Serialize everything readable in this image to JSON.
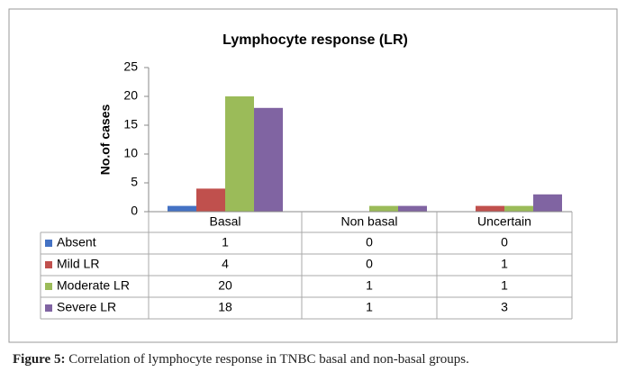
{
  "chart_data": {
    "type": "bar",
    "title": "Lymphocyte response (LR)",
    "y_label": "No.of cases",
    "categories": [
      "Basal",
      "Non basal",
      "Uncertain"
    ],
    "series": [
      {
        "name": "Absent",
        "color": "#4472c4",
        "values": [
          1,
          0,
          0
        ]
      },
      {
        "name": "Mild LR",
        "color": "#c0504d",
        "values": [
          4,
          0,
          1
        ]
      },
      {
        "name": "Moderate LR",
        "color": "#9bbb59",
        "values": [
          20,
          1,
          1
        ]
      },
      {
        "name": "Severe LR",
        "color": "#8064a2",
        "values": [
          18,
          1,
          3
        ]
      }
    ],
    "ylim": [
      0,
      25
    ],
    "yticks": [
      0,
      5,
      10,
      15,
      20,
      25
    ],
    "grid": false,
    "data_table": true
  },
  "caption": {
    "label": "Figure 5:",
    "text": "Correlation of lymphocyte response in TNBC basal and non-basal groups."
  }
}
